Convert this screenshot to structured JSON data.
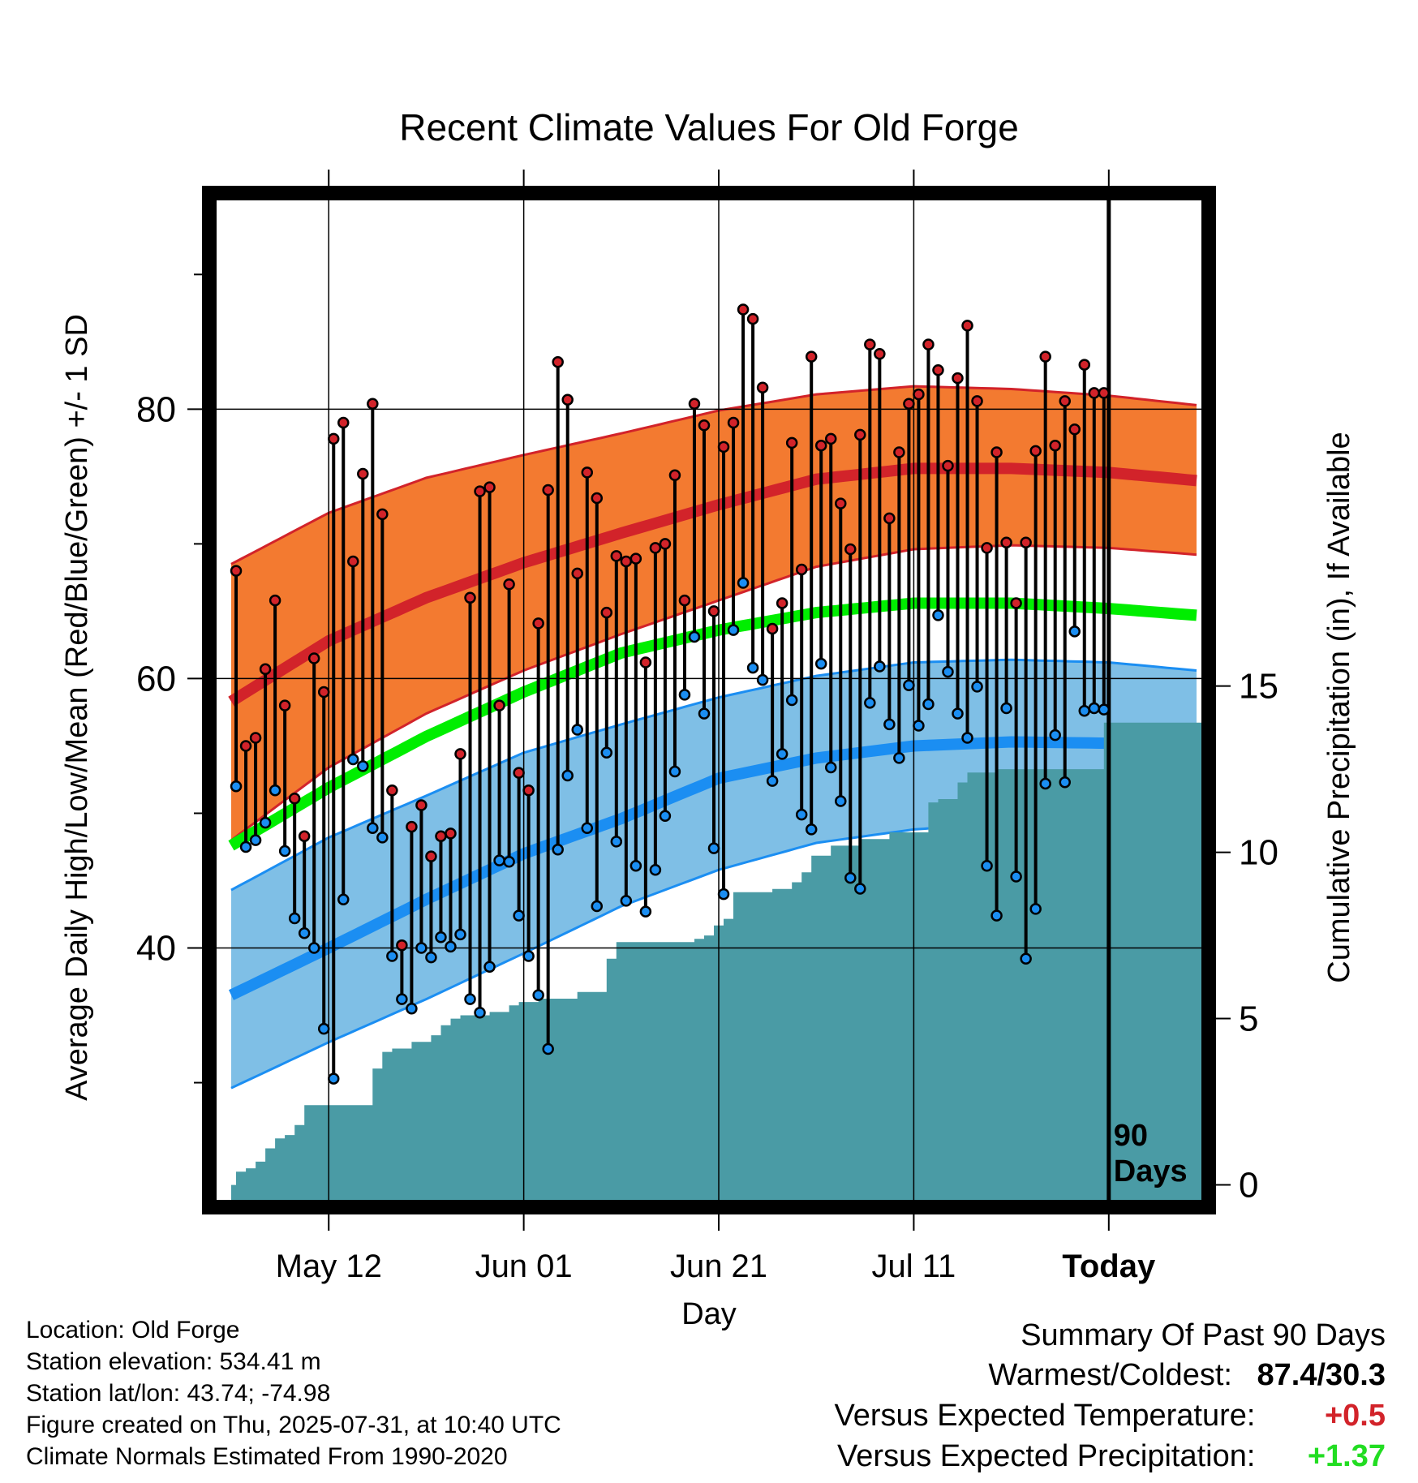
{
  "chart_data": {
    "type": "line",
    "title": "Recent Climate Values For Old Forge",
    "xlabel": "Day",
    "ylabel_left": "Average Daily High/Low/Mean (Red/Blue/Green) +/- 1 SD",
    "ylabel_right": "Cumulative Precipitation (in), If Available",
    "x_tick_labels": [
      "May 12",
      "Jun 01",
      "Jun 21",
      "Jul 11",
      "Today"
    ],
    "x_tick_days": [
      10,
      30,
      50,
      70,
      90
    ],
    "x_range": [
      -1.5,
      99.5
    ],
    "y_left_range": [
      21.3,
      95.5
    ],
    "y_left_ticks": [
      40,
      60,
      80
    ],
    "y_right_range": [
      -0.45,
      29.6
    ],
    "y_right_ticks": [
      0,
      5,
      10,
      15
    ],
    "today_marker_label": "90\nDays",
    "colors": {
      "high_band": "#f37a30",
      "high_line": "#d2232a",
      "low_band": "#7fbfe6",
      "low_line": "#1b8ef2",
      "mean_line": "#00ee00",
      "precip": "#4a9ba5",
      "high_dot": "#d2232a",
      "low_dot": "#1b8ef2"
    },
    "normals": {
      "x": [
        0,
        10,
        20,
        30,
        40,
        50,
        60,
        70,
        80,
        90,
        99
      ],
      "high_mean": [
        58.3,
        62.8,
        66.0,
        68.6,
        70.8,
        72.9,
        74.8,
        75.6,
        75.6,
        75.3,
        74.7
      ],
      "high_upper": [
        68.5,
        72.3,
        74.9,
        76.6,
        78.2,
        79.9,
        81.1,
        81.7,
        81.5,
        81.0,
        80.3
      ],
      "high_lower": [
        48.0,
        53.4,
        57.4,
        60.6,
        63.3,
        65.8,
        68.3,
        69.6,
        69.9,
        69.7,
        69.2
      ],
      "mean_line": [
        47.6,
        51.9,
        55.7,
        59.0,
        61.9,
        63.6,
        64.9,
        65.6,
        65.6,
        65.2,
        64.7
      ],
      "low_mean": [
        36.5,
        40.0,
        43.6,
        47.0,
        49.6,
        52.6,
        54.1,
        55.0,
        55.3,
        55.2,
        54.6
      ],
      "low_upper": [
        44.3,
        48.2,
        51.3,
        54.5,
        56.6,
        58.6,
        60.2,
        61.2,
        61.4,
        61.2,
        60.6
      ],
      "low_lower": [
        29.6,
        33.0,
        36.2,
        39.6,
        43.1,
        45.8,
        47.8,
        48.8,
        49.3,
        49.2,
        48.7
      ]
    },
    "highs": [
      68,
      55,
      55.6,
      60.7,
      65.8,
      58,
      51.1,
      48.3,
      61.5,
      59,
      77.8,
      79,
      68.7,
      75.2,
      80.4,
      72.2,
      51.7,
      40.2,
      49,
      50.6,
      46.8,
      48.3,
      48.5,
      54.4,
      66,
      73.9,
      74.2,
      58,
      67,
      53,
      51.7,
      64.1,
      74,
      83.5,
      80.7,
      67.8,
      75.3,
      73.4,
      64.9,
      69.1,
      68.7,
      68.9,
      61.2,
      69.7,
      70,
      75.1,
      65.8,
      80.4,
      78.8,
      65,
      77.2,
      79,
      87.4,
      86.7,
      81.6,
      63.7,
      65.6,
      77.5,
      68.1,
      83.9,
      77.3,
      77.8,
      73,
      69.6,
      78.1,
      84.8,
      84.1,
      71.9,
      76.8,
      80.4,
      81.1,
      84.8,
      82.9,
      75.8,
      82.3,
      86.2,
      80.6,
      69.7,
      76.8,
      70.1,
      65.6,
      70.1,
      76.9,
      83.9,
      77.3,
      80.6,
      78.5,
      83.3,
      81.2,
      81.2
    ],
    "lows": [
      52,
      47.5,
      48,
      49.3,
      51.7,
      47.2,
      42.2,
      41.1,
      40,
      34,
      30.3,
      43.6,
      54,
      53.5,
      48.9,
      48.2,
      39.4,
      36.2,
      35.5,
      40,
      39.3,
      40.8,
      40.1,
      41,
      36.2,
      35.2,
      38.6,
      46.5,
      46.4,
      42.4,
      39.4,
      36.5,
      32.5,
      47.3,
      52.8,
      56.2,
      48.9,
      43.1,
      54.5,
      47.9,
      43.5,
      46.1,
      42.7,
      45.8,
      49.8,
      53.1,
      58.8,
      63.1,
      57.4,
      47.4,
      44,
      63.6,
      67.1,
      60.8,
      59.9,
      52.4,
      54.4,
      58.4,
      49.9,
      48.8,
      61.1,
      53.4,
      50.9,
      45.2,
      44.4,
      58.2,
      60.9,
      56.6,
      54.1,
      59.5,
      56.5,
      58.1,
      64.7,
      60.5,
      57.4,
      55.6,
      59.4,
      46.1,
      42.4,
      57.8,
      45.3,
      39.2,
      42.9,
      52.2,
      55.8,
      52.3,
      63.5,
      57.6,
      57.8,
      57.7
    ],
    "precip_cumulative": [
      0,
      0.4,
      0.5,
      0.7,
      1.1,
      1.4,
      1.5,
      1.8,
      2.4,
      2.4,
      2.4,
      2.4,
      2.4,
      2.4,
      2.4,
      3.5,
      4.0,
      4.1,
      4.1,
      4.3,
      4.3,
      4.5,
      4.8,
      5.0,
      5.1,
      5.1,
      5.1,
      5.2,
      5.2,
      5.4,
      5.5,
      5.5,
      5.6,
      5.6,
      5.6,
      5.6,
      5.8,
      5.8,
      5.8,
      6.8,
      7.3,
      7.3,
      7.3,
      7.3,
      7.3,
      7.3,
      7.3,
      7.3,
      7.4,
      7.5,
      7.8,
      8.0,
      8.8,
      8.8,
      8.8,
      8.8,
      8.9,
      8.9,
      9.1,
      9.4,
      9.9,
      9.9,
      10.2,
      10.2,
      10.2,
      10.4,
      10.4,
      10.4,
      10.6,
      10.6,
      10.6,
      10.6,
      11.5,
      11.6,
      11.6,
      12.1,
      12.4,
      12.4,
      12.4,
      12.5,
      12.5,
      12.5,
      12.5,
      12.5,
      12.5,
      12.5,
      12.5,
      12.5,
      12.5,
      12.5,
      13.9,
      13.9,
      13.9,
      13.9,
      13.9,
      13.9,
      13.9,
      13.9,
      13.9,
      13.9,
      13.9
    ]
  },
  "location_info": {
    "location": "Location: Old Forge",
    "elevation": "Station elevation: 534.41 m",
    "latlon": "Station lat/lon: 43.74; -74.98",
    "created": "Figure created on Thu, 2025-07-31, at 10:40 UTC",
    "normals": "Climate Normals Estimated From 1990-2020"
  },
  "summary": {
    "heading": "Summary Of Past 90 Days",
    "warmest_coldest_label": "Warmest/Coldest:",
    "warmest_coldest_value": "87.4/30.3",
    "temp_label": "Versus Expected Temperature:",
    "temp_value": "+0.5",
    "temp_color": "#d2232a",
    "precip_label": "Versus Expected Precipitation:",
    "precip_value": "+1.37",
    "precip_color": "#22dd22"
  }
}
